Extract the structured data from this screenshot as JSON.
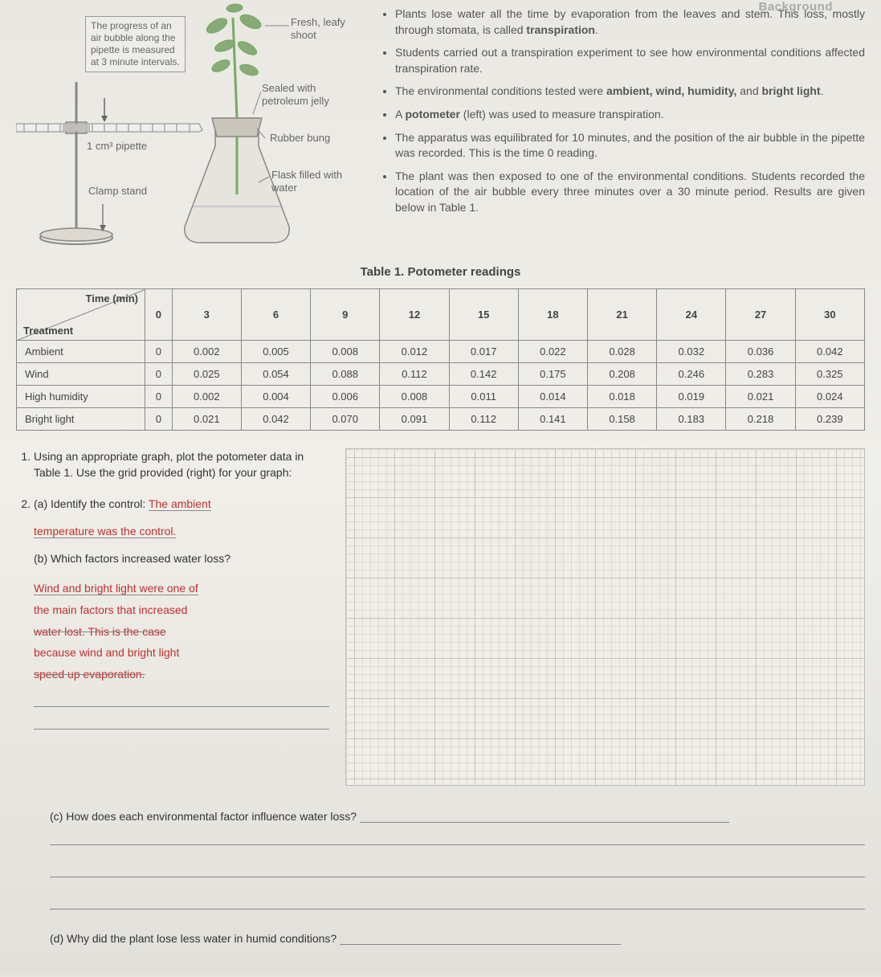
{
  "header_cutoff": "Background",
  "diagram": {
    "label_progress": "The progress of an air bubble along the pipette is measured at 3 minute intervals.",
    "label_pipette": "1 cm³ pipette",
    "label_clamp": "Clamp stand",
    "label_shoot": "Fresh, leafy shoot",
    "label_sealed": "Sealed with petroleum jelly",
    "label_bung": "Rubber bung",
    "label_flask": "Flask filled with water"
  },
  "bullets": [
    "Plants lose water all the time by evaporation from the leaves and stem. This loss, mostly through stomata, is called <b>transpiration</b>.",
    "Students carried out a transpiration experiment to see how environmental conditions affected transpiration rate.",
    "The environmental conditions tested were <b>ambient, wind, humidity,</b> and <b>bright light</b>.",
    "A <b>potometer</b> (left) was used to measure transpiration.",
    "The apparatus was equilibrated for 10 minutes, and the position of the air bubble in the pipette was recorded. This is the time 0 reading.",
    "The plant was then exposed to one of the environmental conditions. Students recorded the location of the air bubble every three minutes over a 30 minute period. Results are given below in Table 1."
  ],
  "table": {
    "caption": "Table 1. Potometer readings",
    "corner_time": "Time (min)",
    "corner_treatment": "Treatment",
    "time_headers": [
      "0",
      "3",
      "6",
      "9",
      "12",
      "15",
      "18",
      "21",
      "24",
      "27",
      "30"
    ],
    "rows": [
      {
        "label": "Ambient",
        "values": [
          "0",
          "0.002",
          "0.005",
          "0.008",
          "0.012",
          "0.017",
          "0.022",
          "0.028",
          "0.032",
          "0.036",
          "0.042"
        ]
      },
      {
        "label": "Wind",
        "values": [
          "0",
          "0.025",
          "0.054",
          "0.088",
          "0.112",
          "0.142",
          "0.175",
          "0.208",
          "0.246",
          "0.283",
          "0.325"
        ]
      },
      {
        "label": "High humidity",
        "values": [
          "0",
          "0.002",
          "0.004",
          "0.006",
          "0.008",
          "0.011",
          "0.014",
          "0.018",
          "0.019",
          "0.021",
          "0.024"
        ]
      },
      {
        "label": "Bright light",
        "values": [
          "0",
          "0.021",
          "0.042",
          "0.070",
          "0.091",
          "0.112",
          "0.141",
          "0.158",
          "0.183",
          "0.218",
          "0.239"
        ]
      }
    ]
  },
  "questions": {
    "q1": "Using an appropriate graph, plot the potometer data in Table 1. Use the grid provided (right) for your graph:",
    "q2a_prompt": "(a) Identify the control:",
    "q2a_answer1": "The ambient",
    "q2a_answer2": "temperature was the control.",
    "q2b_prompt": "(b) Which factors increased water loss?",
    "q2b_line1": "Wind and bright light were one of",
    "q2b_line2": "the main factors that increased",
    "q2b_line3": "water lost. This is the case",
    "q2b_line4": "because wind and bright light",
    "q2b_line5": "speed up evaporation.",
    "q2c": "(c)  How does each environmental factor influence water loss?",
    "q2d": "(d)  Why did the plant lose less water in humid conditions?"
  },
  "colors": {
    "answer_red": "#c03030",
    "text": "#444",
    "border": "#888"
  }
}
